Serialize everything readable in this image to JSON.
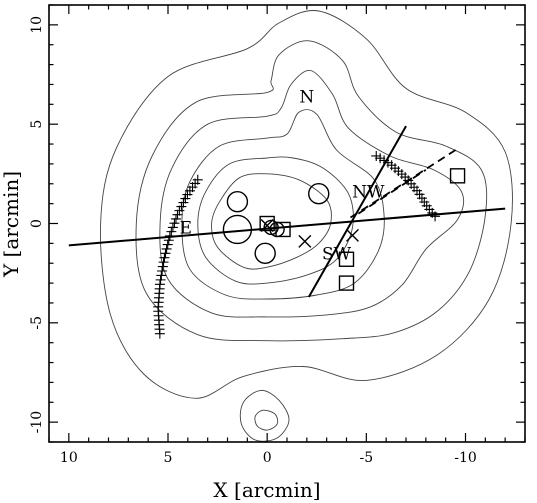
{
  "chart_data": {
    "type": "scatter",
    "xlabel": "X [arcmin]",
    "ylabel": "Y [arcmin]",
    "xlim": [
      11,
      -13
    ],
    "ylim": [
      -11,
      11
    ],
    "x_ticks": [
      10,
      5,
      0,
      -5,
      -10
    ],
    "y_ticks": [
      10,
      5,
      0,
      -5,
      -10
    ],
    "x_tick_labels": [
      "10",
      "5",
      "0",
      "-5",
      "-10"
    ],
    "y_tick_labels": [
      "10",
      "5",
      "0",
      "-5",
      "-10"
    ],
    "grid": false,
    "region_labels": [
      {
        "text": "N",
        "x": -2.0,
        "y": 6.1
      },
      {
        "text": "NW",
        "x": -5.1,
        "y": 1.3
      },
      {
        "text": "SW",
        "x": -3.5,
        "y": -1.8
      },
      {
        "text": "E",
        "x": 4.1,
        "y": -0.5
      }
    ],
    "circles": [
      {
        "x": 1.5,
        "y": 1.1,
        "size": "medium"
      },
      {
        "x": 1.5,
        "y": -0.3,
        "size": "large"
      },
      {
        "x": 0.1,
        "y": -1.5,
        "size": "medium"
      },
      {
        "x": -2.6,
        "y": 1.5,
        "size": "medium"
      },
      {
        "x": -0.2,
        "y": -0.2,
        "size": "small"
      },
      {
        "x": -0.5,
        "y": -0.3,
        "size": "small"
      }
    ],
    "squares": [
      {
        "x": 0.0,
        "y": 0.0
      },
      {
        "x": -0.8,
        "y": -0.3
      },
      {
        "x": -4.0,
        "y": -1.8
      },
      {
        "x": -4.0,
        "y": -3.0
      },
      {
        "x": -9.6,
        "y": 2.4
      }
    ],
    "crosses": [
      {
        "x": 0.0,
        "y": -0.1
      },
      {
        "x": -1.9,
        "y": -0.9
      },
      {
        "x": -4.3,
        "y": -0.6
      }
    ],
    "solid_lines": [
      {
        "points": [
          [
            10.0,
            -1.1
          ],
          [
            -12.0,
            0.75
          ]
        ]
      },
      {
        "points": [
          [
            -2.1,
            -3.7
          ],
          [
            -7.0,
            4.9
          ]
        ]
      }
    ],
    "dashed_lines": [
      {
        "points": [
          [
            -4.2,
            0.3
          ],
          [
            -9.5,
            3.7
          ]
        ]
      },
      {
        "points": [
          [
            -4.6,
            0.5
          ],
          [
            -8.0,
            2.7
          ]
        ]
      }
    ],
    "plus_tracks": [
      {
        "points": [
          [
            3.5,
            2.2
          ],
          [
            4.0,
            1.5
          ],
          [
            4.5,
            0.5
          ],
          [
            4.9,
            -0.6
          ],
          [
            5.2,
            -1.8
          ],
          [
            5.4,
            -3.0
          ],
          [
            5.5,
            -4.3
          ],
          [
            5.4,
            -5.7
          ]
        ]
      },
      {
        "points": [
          [
            -5.5,
            3.4
          ],
          [
            -6.2,
            3.0
          ],
          [
            -7.0,
            2.3
          ],
          [
            -7.6,
            1.6
          ],
          [
            -8.1,
            0.8
          ],
          [
            -8.6,
            0.2
          ]
        ]
      }
    ],
    "contours": [
      {
        "level": 1,
        "points": [
          [
            0.0,
            2.5
          ],
          [
            1.4,
            2.3
          ],
          [
            2.4,
            1.1
          ],
          [
            2.8,
            0.0
          ],
          [
            2.5,
            -1.2
          ],
          [
            1.2,
            -2.2
          ],
          [
            0.0,
            -2.2
          ],
          [
            -1.5,
            -1.7
          ],
          [
            -2.6,
            -1.0
          ],
          [
            -3.2,
            0.0
          ],
          [
            -3.0,
            1.2
          ],
          [
            -1.6,
            2.2
          ]
        ]
      },
      {
        "level": 2,
        "points": [
          [
            0.0,
            3.3
          ],
          [
            1.9,
            3.0
          ],
          [
            3.1,
            1.6
          ],
          [
            3.5,
            0.0
          ],
          [
            3.1,
            -1.7
          ],
          [
            1.6,
            -2.9
          ],
          [
            0.0,
            -3.0
          ],
          [
            -2.0,
            -2.6
          ],
          [
            -3.5,
            -1.8
          ],
          [
            -4.3,
            -0.2
          ],
          [
            -4.1,
            1.5
          ],
          [
            -2.8,
            2.8
          ],
          [
            -1.3,
            3.3
          ]
        ]
      },
      {
        "level": 3,
        "points": [
          [
            0.0,
            4.3
          ],
          [
            2.4,
            3.9
          ],
          [
            3.9,
            2.1
          ],
          [
            4.3,
            0.0
          ],
          [
            3.9,
            -2.3
          ],
          [
            2.1,
            -3.6
          ],
          [
            0.0,
            -3.8
          ],
          [
            -2.5,
            -3.6
          ],
          [
            -4.4,
            -3.0
          ],
          [
            -5.6,
            -1.4
          ],
          [
            -5.9,
            0.3
          ],
          [
            -5.4,
            2.2
          ],
          [
            -3.5,
            3.7
          ],
          [
            -2.5,
            5.5
          ],
          [
            -1.6,
            5.6
          ],
          [
            -1.0,
            4.5
          ]
        ]
      },
      {
        "level": 4,
        "points": [
          [
            0.0,
            5.4
          ],
          [
            3.0,
            5.0
          ],
          [
            4.8,
            2.8
          ],
          [
            5.4,
            0.0
          ],
          [
            5.0,
            -2.8
          ],
          [
            2.8,
            -4.5
          ],
          [
            0.0,
            -4.7
          ],
          [
            -3.0,
            -4.6
          ],
          [
            -5.2,
            -4.2
          ],
          [
            -6.8,
            -3.1
          ],
          [
            -8.0,
            -1.3
          ],
          [
            -9.6,
            0.2
          ],
          [
            -9.8,
            1.6
          ],
          [
            -8.4,
            2.7
          ],
          [
            -6.2,
            3.4
          ],
          [
            -4.1,
            4.8
          ],
          [
            -3.3,
            6.5
          ],
          [
            -2.2,
            7.7
          ],
          [
            -1.2,
            7.0
          ],
          [
            -0.7,
            5.8
          ]
        ]
      },
      {
        "level": 5,
        "points": [
          [
            0.0,
            6.6
          ],
          [
            3.6,
            6.1
          ],
          [
            5.8,
            3.4
          ],
          [
            6.6,
            0.0
          ],
          [
            6.1,
            -3.5
          ],
          [
            3.5,
            -5.6
          ],
          [
            0.0,
            -5.9
          ],
          [
            -3.8,
            -5.8
          ],
          [
            -6.4,
            -5.5
          ],
          [
            -8.6,
            -4.4
          ],
          [
            -10.2,
            -2.4
          ],
          [
            -11.0,
            0.4
          ],
          [
            -10.8,
            2.7
          ],
          [
            -9.0,
            3.9
          ],
          [
            -6.5,
            4.6
          ],
          [
            -4.6,
            6.4
          ],
          [
            -3.8,
            8.2
          ],
          [
            -2.1,
            9.2
          ],
          [
            -0.6,
            8.5
          ],
          [
            -0.2,
            7.2
          ]
        ]
      },
      {
        "level": 6,
        "points": [
          [
            1.0,
            8.8
          ],
          [
            5.0,
            7.4
          ],
          [
            7.6,
            3.8
          ],
          [
            8.4,
            0.0
          ],
          [
            7.9,
            -4.6
          ],
          [
            6.2,
            -7.6
          ],
          [
            3.6,
            -8.8
          ],
          [
            1.2,
            -7.7
          ],
          [
            -1.8,
            -7.2
          ],
          [
            -5.0,
            -7.9
          ],
          [
            -8.6,
            -6.6
          ],
          [
            -11.2,
            -3.8
          ],
          [
            -12.3,
            0.0
          ],
          [
            -12.0,
            3.6
          ],
          [
            -10.0,
            5.6
          ],
          [
            -7.0,
            6.8
          ],
          [
            -5.0,
            9.3
          ],
          [
            -2.6,
            10.7
          ],
          [
            -0.6,
            10.1
          ]
        ]
      },
      {
        "level": 7,
        "points": [
          [
            0.3,
            -8.4
          ],
          [
            -0.6,
            -8.9
          ],
          [
            -1.1,
            -9.9
          ],
          [
            -0.5,
            -10.8
          ],
          [
            0.6,
            -10.9
          ],
          [
            1.3,
            -10.1
          ],
          [
            1.2,
            -9.0
          ]
        ]
      },
      {
        "level": 8,
        "points": [
          [
            0.2,
            -9.4
          ],
          [
            -0.4,
            -9.6
          ],
          [
            -0.5,
            -10.1
          ],
          [
            0.0,
            -10.4
          ],
          [
            0.5,
            -10.2
          ],
          [
            0.6,
            -9.7
          ]
        ]
      }
    ]
  }
}
